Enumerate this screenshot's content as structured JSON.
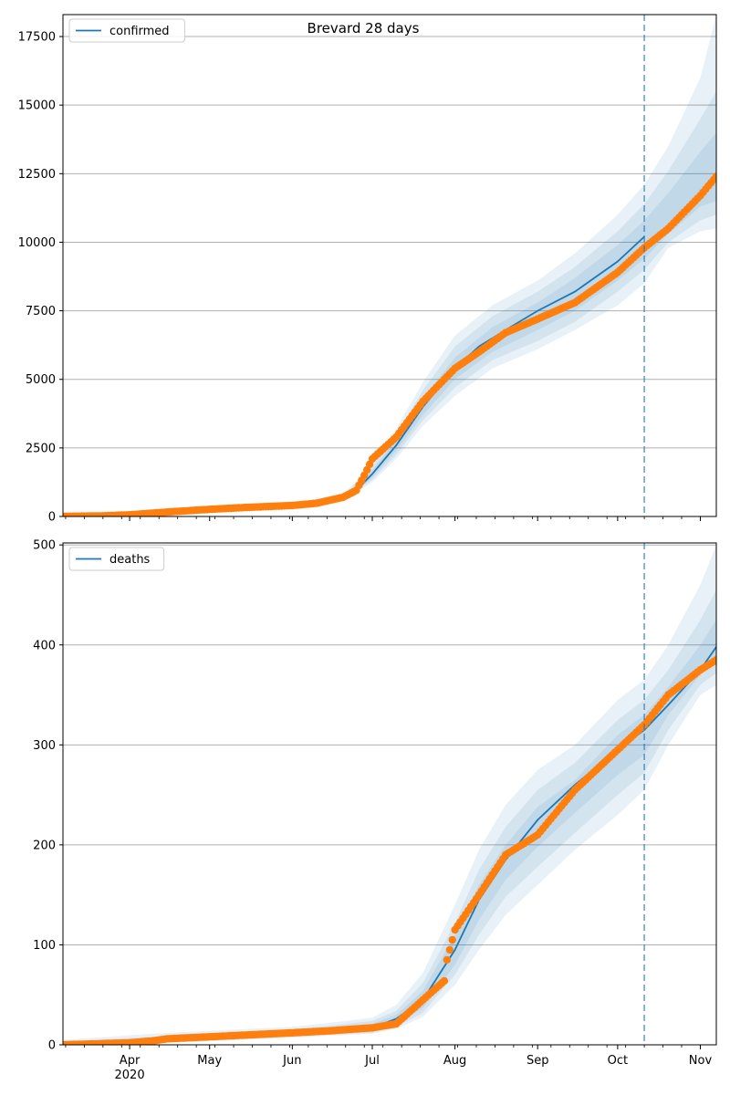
{
  "figure_title": "Brevard 28 days",
  "chart_data": [
    {
      "type": "line",
      "legend": "confirmed",
      "legend_position": "upper-left",
      "grid": "y",
      "y_ticks": [
        0,
        2500,
        5000,
        7500,
        10000,
        12500,
        15000,
        17500
      ],
      "ylim": [
        0,
        18300
      ],
      "x_ticks": [
        "Apr",
        "May",
        "Jun",
        "Jul",
        "Aug",
        "Sep",
        "Oct",
        "Nov"
      ],
      "x_sublabel": "2020",
      "x_range": [
        "2020-03-07",
        "2020-11-07"
      ],
      "forecast_start": "2020-10-11",
      "model": {
        "x": [
          "2020-03-07",
          "2020-03-21",
          "2020-04-01",
          "2020-04-15",
          "2020-05-01",
          "2020-05-15",
          "2020-06-01",
          "2020-06-10",
          "2020-06-20",
          "2020-06-25",
          "2020-07-01",
          "2020-07-10",
          "2020-07-20",
          "2020-08-01",
          "2020-08-10",
          "2020-08-20",
          "2020-09-01",
          "2020-09-15",
          "2020-10-01",
          "2020-10-11"
        ],
        "y": [
          10,
          30,
          60,
          150,
          260,
          330,
          400,
          470,
          650,
          950,
          1550,
          2600,
          4000,
          5400,
          6200,
          6800,
          7500,
          8200,
          9300,
          10200
        ]
      },
      "bands": [
        {
          "x": [
            "2020-03-07",
            "2020-06-01",
            "2020-06-20",
            "2020-07-01",
            "2020-07-10",
            "2020-07-20",
            "2020-08-01",
            "2020-08-15",
            "2020-09-01",
            "2020-09-15",
            "2020-10-01",
            "2020-10-11",
            "2020-10-20",
            "2020-11-01",
            "2020-11-07"
          ],
          "lower": [
            0,
            300,
            550,
            1250,
            2100,
            3300,
            4400,
            5400,
            6100,
            6800,
            7700,
            8500,
            9800,
            10400,
            10500
          ],
          "upper": [
            60,
            500,
            800,
            1900,
            3200,
            4900,
            6600,
            7700,
            8600,
            9600,
            11000,
            12100,
            13500,
            16000,
            18300
          ]
        },
        {
          "x": [
            "2020-03-07",
            "2020-06-01",
            "2020-06-20",
            "2020-07-01",
            "2020-07-10",
            "2020-07-20",
            "2020-08-01",
            "2020-08-15",
            "2020-09-01",
            "2020-09-15",
            "2020-10-01",
            "2020-10-11",
            "2020-10-20",
            "2020-11-01",
            "2020-11-07"
          ],
          "lower": [
            0,
            330,
            580,
            1330,
            2250,
            3500,
            4700,
            5700,
            6400,
            7100,
            8200,
            9000,
            10000,
            10800,
            11000
          ],
          "upper": [
            40,
            470,
            760,
            1800,
            3000,
            4600,
            6200,
            7300,
            8200,
            9100,
            10400,
            11400,
            12600,
            14500,
            15500
          ]
        },
        {
          "x": [
            "2020-03-07",
            "2020-06-01",
            "2020-06-20",
            "2020-07-01",
            "2020-07-10",
            "2020-07-20",
            "2020-08-01",
            "2020-08-15",
            "2020-09-01",
            "2020-09-15",
            "2020-10-01",
            "2020-10-11",
            "2020-10-20",
            "2020-11-01",
            "2020-11-07"
          ],
          "lower": [
            0,
            360,
            610,
            1420,
            2400,
            3700,
            5000,
            6000,
            6800,
            7500,
            8600,
            9400,
            10300,
            11300,
            11500
          ],
          "upper": [
            25,
            440,
            720,
            1680,
            2800,
            4300,
            5800,
            6900,
            7800,
            8700,
            9900,
            10800,
            11800,
            13300,
            14000
          ]
        }
      ],
      "observed": {
        "x": [
          "2020-03-07",
          "2020-03-21",
          "2020-04-01",
          "2020-04-15",
          "2020-05-01",
          "2020-05-15",
          "2020-06-01",
          "2020-06-10",
          "2020-06-20",
          "2020-06-25",
          "2020-06-28",
          "2020-07-01",
          "2020-07-10",
          "2020-07-20",
          "2020-08-01",
          "2020-08-10",
          "2020-08-20",
          "2020-09-01",
          "2020-09-15",
          "2020-10-01",
          "2020-10-11",
          "2020-10-20",
          "2020-11-01",
          "2020-11-07"
        ],
        "y": [
          5,
          20,
          60,
          160,
          260,
          330,
          400,
          480,
          700,
          950,
          1500,
          2100,
          2900,
          4200,
          5400,
          6000,
          6700,
          7200,
          7800,
          8900,
          9800,
          10500,
          11700,
          12400
        ]
      }
    },
    {
      "type": "line",
      "legend": "deaths",
      "legend_position": "upper-left",
      "grid": "y",
      "y_ticks": [
        0,
        100,
        200,
        300,
        400,
        500
      ],
      "ylim": [
        0,
        502
      ],
      "x_ticks": [
        "Apr",
        "May",
        "Jun",
        "Jul",
        "Aug",
        "Sep",
        "Oct",
        "Nov"
      ],
      "x_sublabel": "2020",
      "x_range": [
        "2020-03-07",
        "2020-11-07"
      ],
      "forecast_start": "2020-10-11",
      "model": {
        "x": [
          "2020-03-07",
          "2020-04-01",
          "2020-04-15",
          "2020-05-01",
          "2020-06-01",
          "2020-06-15",
          "2020-07-01",
          "2020-07-10",
          "2020-07-20",
          "2020-08-01",
          "2020-08-10",
          "2020-08-20",
          "2020-09-01",
          "2020-09-15",
          "2020-10-01",
          "2020-10-11",
          "2020-10-20",
          "2020-11-01",
          "2020-11-07"
        ],
        "y": [
          0,
          3,
          5,
          8,
          12,
          14,
          17,
          26,
          45,
          95,
          145,
          185,
          225,
          260,
          295,
          315,
          340,
          375,
          398
        ]
      },
      "bands": [
        {
          "x": [
            "2020-03-07",
            "2020-04-15",
            "2020-06-01",
            "2020-06-15",
            "2020-07-01",
            "2020-07-10",
            "2020-07-20",
            "2020-08-01",
            "2020-08-10",
            "2020-08-20",
            "2020-09-01",
            "2020-09-15",
            "2020-10-01",
            "2020-10-11",
            "2020-10-20",
            "2020-11-01",
            "2020-11-07"
          ],
          "lower": [
            0,
            2,
            7,
            9,
            11,
            16,
            28,
            60,
            95,
            130,
            160,
            195,
            230,
            255,
            300,
            350,
            360
          ],
          "upper": [
            5,
            12,
            18,
            22,
            27,
            40,
            72,
            140,
            195,
            240,
            275,
            300,
            345,
            365,
            400,
            460,
            500
          ]
        },
        {
          "x": [
            "2020-03-07",
            "2020-04-15",
            "2020-06-01",
            "2020-06-15",
            "2020-07-01",
            "2020-07-10",
            "2020-07-20",
            "2020-08-01",
            "2020-08-10",
            "2020-08-20",
            "2020-09-01",
            "2020-09-15",
            "2020-10-01",
            "2020-10-11",
            "2020-10-20",
            "2020-11-01",
            "2020-11-07"
          ],
          "lower": [
            0,
            3,
            8,
            10,
            12,
            18,
            32,
            70,
            110,
            148,
            178,
            212,
            250,
            272,
            315,
            360,
            372
          ],
          "upper": [
            3,
            9,
            16,
            19,
            24,
            34,
            62,
            122,
            175,
            218,
            255,
            282,
            325,
            345,
            375,
            425,
            455
          ]
        },
        {
          "x": [
            "2020-03-07",
            "2020-04-15",
            "2020-06-01",
            "2020-06-15",
            "2020-07-01",
            "2020-07-10",
            "2020-07-20",
            "2020-08-01",
            "2020-08-10",
            "2020-08-20",
            "2020-09-01",
            "2020-09-15",
            "2020-10-01",
            "2020-10-11",
            "2020-10-20",
            "2020-11-01",
            "2020-11-07"
          ],
          "lower": [
            0,
            4,
            9,
            11,
            14,
            21,
            37,
            80,
            125,
            165,
            198,
            232,
            270,
            290,
            330,
            370,
            382
          ],
          "upper": [
            2,
            7,
            14,
            17,
            21,
            30,
            54,
            110,
            160,
            200,
            238,
            265,
            310,
            330,
            358,
            400,
            425
          ]
        }
      ],
      "observed": {
        "x": [
          "2020-03-07",
          "2020-04-01",
          "2020-04-10",
          "2020-04-15",
          "2020-05-01",
          "2020-06-01",
          "2020-06-15",
          "2020-07-01",
          "2020-07-10",
          "2020-07-20",
          "2020-07-28",
          "2020-07-29",
          "2020-08-01",
          "2020-08-10",
          "2020-08-20",
          "2020-09-01",
          "2020-09-15",
          "2020-10-01",
          "2020-10-11",
          "2020-10-20",
          "2020-11-01",
          "2020-11-07"
        ],
        "y": [
          0,
          2,
          4,
          6,
          8,
          12,
          14,
          17,
          21,
          45,
          64,
          85,
          115,
          150,
          190,
          210,
          255,
          295,
          320,
          350,
          375,
          385
        ]
      }
    }
  ]
}
